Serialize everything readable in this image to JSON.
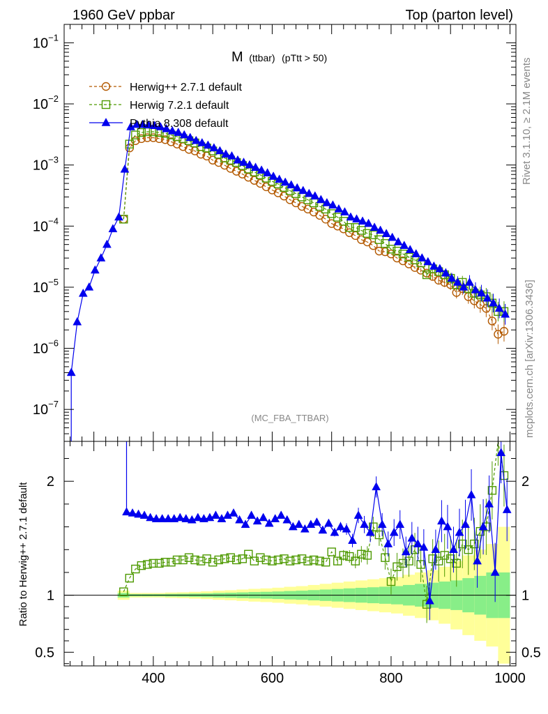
{
  "header": {
    "left_label": "1960 GeV ppbar",
    "right_label": "Top (parton level)"
  },
  "side_labels": {
    "rivet": "Rivet 3.1.10, ≥ 2.1M events",
    "mcplots": "mcplots.cern.ch [arXiv:1306.3436]"
  },
  "chart_data": [
    {
      "type": "line",
      "panel": "main",
      "title_main": "M",
      "title_sub": "(ttbar)",
      "title_cut": "(pTtt > 50)",
      "analysis_tag": "(MC_FBA_TTBAR)",
      "xlim": [
        250,
        1010
      ],
      "ylim": [
        3e-08,
        0.2
      ],
      "yscale": "log",
      "y_ticks": [
        {
          "base": "10",
          "exp": "−1",
          "value": 0.1
        },
        {
          "base": "10",
          "exp": "−2",
          "value": 0.01
        },
        {
          "base": "10",
          "exp": "−3",
          "value": 0.001
        },
        {
          "base": "10",
          "exp": "−4",
          "value": 0.0001
        },
        {
          "base": "10",
          "exp": "−5",
          "value": 1e-05
        },
        {
          "base": "10",
          "exp": "−6",
          "value": 1e-06
        },
        {
          "base": "10",
          "exp": "−7",
          "value": 1e-07
        }
      ],
      "legend_position": "top-left",
      "series": [
        {
          "name": "Herwig++ 2.7.1 default",
          "color": "#b35900",
          "marker": "open-circle",
          "dash": true,
          "x": [
            350,
            360,
            370,
            380,
            390,
            400,
            410,
            420,
            430,
            440,
            450,
            460,
            470,
            480,
            490,
            500,
            510,
            520,
            530,
            540,
            550,
            560,
            570,
            580,
            590,
            600,
            610,
            620,
            630,
            640,
            650,
            660,
            670,
            680,
            690,
            700,
            710,
            720,
            730,
            740,
            750,
            760,
            770,
            780,
            790,
            800,
            810,
            820,
            830,
            840,
            850,
            860,
            870,
            880,
            890,
            900,
            910,
            920,
            930,
            940,
            950,
            960,
            970,
            980,
            990
          ],
          "values": [
            0.00013,
            0.0019,
            0.0025,
            0.0027,
            0.0028,
            0.0028,
            0.0027,
            0.0026,
            0.0024,
            0.0022,
            0.002,
            0.0018,
            0.0017,
            0.0015,
            0.0014,
            0.0012,
            0.0011,
            0.00099,
            0.00088,
            0.00079,
            0.00071,
            0.00063,
            0.00056,
            0.0005,
            0.00044,
            0.00039,
            0.00035,
            0.00031,
            0.00027,
            0.00024,
            0.00021,
            0.00019,
            0.00017,
            0.00015,
            0.00013,
            0.00011,
            0.0001,
            9e-05,
            7.8e-05,
            7e-05,
            6e-05,
            5.5e-05,
            4.8e-05,
            3.9e-05,
            3.8e-05,
            3.5e-05,
            3e-05,
            2.7e-05,
            2.4e-05,
            2.1e-05,
            1.9e-05,
            1.7e-05,
            1.5e-05,
            1.3e-05,
            1.2e-05,
            1.1e-05,
            8.2e-06,
            9.5e-06,
            7e-06,
            6e-06,
            5.2e-06,
            4.5e-06,
            2.8e-06,
            1.7e-06,
            1.9e-06
          ]
        },
        {
          "name": "Herwig 7.2.1 default",
          "color": "#4d9900",
          "marker": "open-square",
          "dash": true,
          "x": [
            350,
            360,
            370,
            380,
            390,
            400,
            410,
            420,
            430,
            440,
            450,
            460,
            470,
            480,
            490,
            500,
            510,
            520,
            530,
            540,
            550,
            560,
            570,
            580,
            590,
            600,
            610,
            620,
            630,
            640,
            650,
            660,
            670,
            680,
            690,
            700,
            710,
            720,
            730,
            740,
            750,
            760,
            770,
            780,
            790,
            800,
            810,
            820,
            830,
            840,
            850,
            860,
            870,
            880,
            890,
            900,
            910,
            920,
            930,
            940,
            950,
            960,
            970,
            980,
            990
          ],
          "values": [
            0.00013,
            0.0022,
            0.0031,
            0.0034,
            0.0035,
            0.0035,
            0.0034,
            0.0033,
            0.0031,
            0.0029,
            0.0027,
            0.0025,
            0.0023,
            0.002,
            0.0019,
            0.0017,
            0.0015,
            0.0013,
            0.0012,
            0.0011,
            0.00098,
            0.00086,
            0.00077,
            0.00069,
            0.00061,
            0.00054,
            0.00049,
            0.00043,
            0.00038,
            0.00034,
            0.0003,
            0.00027,
            0.00024,
            0.00021,
            0.00019,
            0.00016,
            0.00014,
            0.00012,
            9.5e-05,
            9.5e-05,
            8.5e-05,
            7.6e-05,
            7.2e-05,
            6e-05,
            5.2e-05,
            4.2e-05,
            3.9e-05,
            3.5e-05,
            3.1e-05,
            2.8e-05,
            2.5e-05,
            1.6e-05,
            2e-05,
            1.8e-05,
            1.6e-05,
            1.4e-05,
            1.1e-05,
            1.2e-05,
            9.5e-06,
            8e-06,
            7.5e-06,
            7e-06,
            5.5e-06,
            4e-06,
            4e-06
          ]
        },
        {
          "name": "Pythia 8.308 default",
          "color": "#0000ee",
          "marker": "filled-triangle",
          "dash": false,
          "x": [
            262,
            272,
            282,
            292,
            302,
            312,
            322,
            332,
            342,
            352,
            362,
            372,
            382,
            392,
            402,
            412,
            422,
            432,
            442,
            452,
            462,
            472,
            482,
            492,
            502,
            512,
            522,
            532,
            542,
            552,
            562,
            572,
            582,
            592,
            602,
            612,
            622,
            632,
            642,
            652,
            662,
            672,
            682,
            692,
            702,
            712,
            722,
            732,
            742,
            752,
            762,
            772,
            782,
            792,
            802,
            812,
            822,
            832,
            842,
            852,
            862,
            872,
            882,
            892,
            902,
            912,
            922,
            932,
            942,
            952,
            962,
            972,
            982,
            992
          ],
          "values": [
            4e-07,
            2.7e-06,
            7.9e-06,
            1e-05,
            1.9e-05,
            3e-05,
            5e-05,
            9e-05,
            0.00014,
            0.00085,
            0.0042,
            0.0046,
            0.0046,
            0.0045,
            0.0044,
            0.0042,
            0.0039,
            0.0036,
            0.0034,
            0.0031,
            0.0028,
            0.0025,
            0.0023,
            0.0021,
            0.0019,
            0.0017,
            0.0015,
            0.0014,
            0.0012,
            0.0011,
            0.001,
            0.00091,
            0.00082,
            0.00074,
            0.00065,
            0.00058,
            0.00052,
            0.00047,
            0.00042,
            0.00038,
            0.00034,
            0.00031,
            0.00027,
            0.00024,
            0.00022,
            0.00019,
            0.00017,
            0.00014,
            0.00013,
            0.00012,
            0.00011,
            9.5e-05,
            8.5e-05,
            7.5e-05,
            6.5e-05,
            5.5e-05,
            4.8e-05,
            4.1e-05,
            3.5e-05,
            3e-05,
            2.6e-05,
            2.2e-05,
            2e-05,
            1.7e-05,
            1.4e-05,
            1.2e-05,
            1e-05,
            1.2e-05,
            9e-06,
            8e-06,
            6.6e-06,
            5.5e-06,
            4.5e-06,
            3.6e-06
          ]
        }
      ]
    },
    {
      "type": "line",
      "panel": "ratio",
      "ylabel": "Ratio to Herwig++ 2.7.1 default",
      "xlim": [
        250,
        1010
      ],
      "ylim": [
        0.38,
        2.35
      ],
      "y_ticks": [
        {
          "label": "0.5",
          "value": 0.5
        },
        {
          "label": "1",
          "value": 1
        },
        {
          "label": "2",
          "value": 2
        }
      ],
      "x_ticks": [
        {
          "label": "400",
          "value": 400
        },
        {
          "label": "600",
          "value": 600
        },
        {
          "label": "800",
          "value": 800
        },
        {
          "label": "1000",
          "value": 1000
        }
      ],
      "reference_line": 1,
      "bands": {
        "x": [
          340,
          360,
          380,
          400,
          420,
          440,
          460,
          480,
          500,
          520,
          540,
          560,
          580,
          600,
          620,
          640,
          660,
          680,
          700,
          720,
          740,
          760,
          780,
          800,
          820,
          840,
          860,
          880,
          900,
          920,
          940,
          960,
          980,
          1000
        ],
        "inner_halfwidth": [
          0.02,
          0.01,
          0.01,
          0.01,
          0.012,
          0.013,
          0.015,
          0.017,
          0.02,
          0.022,
          0.025,
          0.028,
          0.03,
          0.033,
          0.037,
          0.04,
          0.045,
          0.05,
          0.055,
          0.06,
          0.065,
          0.07,
          0.075,
          0.08,
          0.09,
          0.1,
          0.11,
          0.12,
          0.13,
          0.15,
          0.17,
          0.2,
          0.2,
          0.2
        ],
        "outer_halfwidth": [
          0.04,
          0.02,
          0.02,
          0.02,
          0.024,
          0.026,
          0.03,
          0.034,
          0.04,
          0.044,
          0.05,
          0.056,
          0.06,
          0.066,
          0.074,
          0.08,
          0.09,
          0.1,
          0.11,
          0.12,
          0.13,
          0.14,
          0.15,
          0.16,
          0.18,
          0.2,
          0.22,
          0.25,
          0.3,
          0.35,
          0.4,
          0.45,
          0.6,
          0.6
        ],
        "inner_color": "#88ee88",
        "outer_color": "#ffff99"
      },
      "series": [
        {
          "name": "Herwig 7.2.1 default",
          "color": "#4d9900",
          "marker": "open-square",
          "dash": true,
          "x": [
            350,
            360,
            370,
            380,
            390,
            400,
            410,
            420,
            430,
            440,
            450,
            460,
            470,
            480,
            490,
            500,
            510,
            520,
            530,
            540,
            550,
            560,
            570,
            580,
            590,
            600,
            610,
            620,
            630,
            640,
            650,
            660,
            670,
            680,
            690,
            700,
            710,
            720,
            730,
            740,
            750,
            760,
            770,
            780,
            790,
            800,
            810,
            820,
            830,
            840,
            850,
            860,
            870,
            880,
            890,
            900,
            910,
            920,
            930,
            940,
            950,
            960,
            970,
            980,
            990
          ],
          "values": [
            1.03,
            1.15,
            1.23,
            1.26,
            1.27,
            1.28,
            1.28,
            1.29,
            1.29,
            1.31,
            1.31,
            1.33,
            1.31,
            1.3,
            1.32,
            1.29,
            1.31,
            1.32,
            1.33,
            1.31,
            1.32,
            1.36,
            1.3,
            1.33,
            1.31,
            1.3,
            1.31,
            1.32,
            1.3,
            1.31,
            1.32,
            1.3,
            1.31,
            1.3,
            1.29,
            1.38,
            1.3,
            1.35,
            1.34,
            1.3,
            1.36,
            1.35,
            1.6,
            1.53,
            1.33,
            1.12,
            1.25,
            1.28,
            1.3,
            1.4,
            1.27,
            0.92,
            1.32,
            1.3,
            1.35,
            1.32,
            1.28,
            1.45,
            1.4,
            1.45,
            1.56,
            1.6,
            1.92,
            2.4,
            2.05
          ]
        },
        {
          "name": "Pythia 8.308 default",
          "color": "#0000ee",
          "marker": "filled-triangle",
          "dash": false,
          "x": [
            355,
            365,
            375,
            385,
            395,
            405,
            415,
            425,
            435,
            445,
            455,
            465,
            475,
            485,
            495,
            505,
            515,
            525,
            535,
            545,
            555,
            565,
            575,
            585,
            595,
            605,
            615,
            625,
            635,
            645,
            655,
            665,
            675,
            685,
            695,
            705,
            715,
            725,
            735,
            745,
            755,
            765,
            775,
            785,
            795,
            805,
            815,
            825,
            835,
            845,
            855,
            865,
            875,
            885,
            895,
            905,
            915,
            925,
            935,
            945,
            955,
            965,
            975,
            985,
            995
          ],
          "values": [
            1.73,
            1.72,
            1.71,
            1.7,
            1.68,
            1.67,
            1.67,
            1.67,
            1.67,
            1.68,
            1.67,
            1.66,
            1.68,
            1.67,
            1.68,
            1.7,
            1.67,
            1.7,
            1.72,
            1.66,
            1.62,
            1.7,
            1.65,
            1.68,
            1.63,
            1.67,
            1.7,
            1.66,
            1.6,
            1.62,
            1.58,
            1.62,
            1.64,
            1.57,
            1.63,
            1.55,
            1.6,
            1.58,
            1.48,
            1.7,
            1.62,
            1.55,
            1.95,
            1.62,
            1.45,
            1.55,
            1.62,
            1.38,
            1.5,
            1.45,
            1.42,
            0.95,
            1.4,
            1.65,
            1.6,
            1.4,
            1.55,
            1.62,
            1.88,
            1.3,
            1.6,
            1.8,
            1.2,
            2.25,
            1.75
          ]
        }
      ]
    }
  ]
}
